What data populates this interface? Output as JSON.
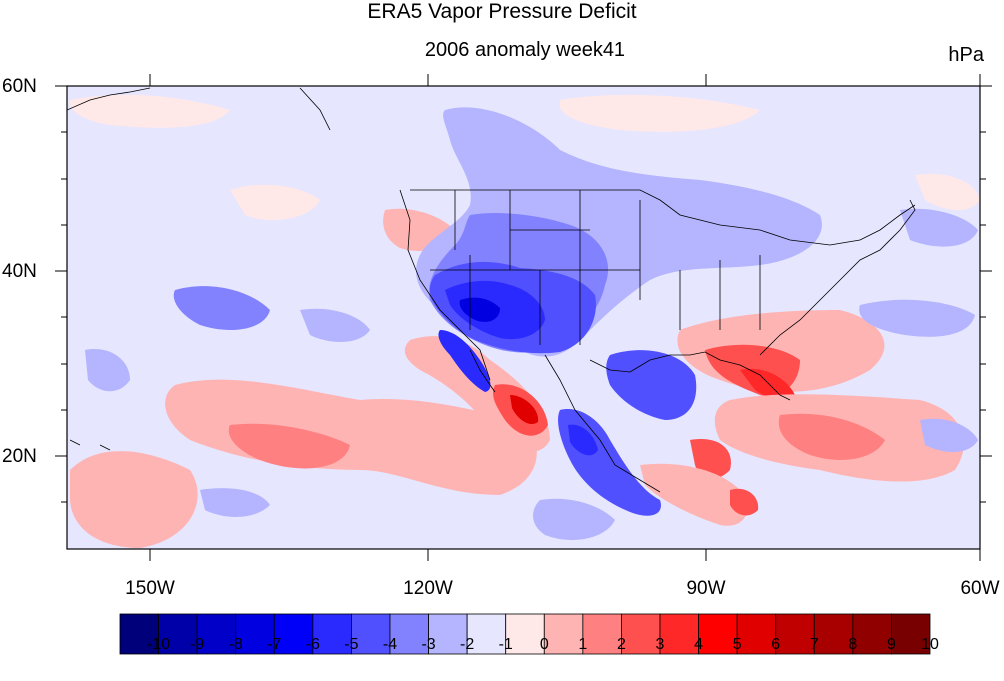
{
  "title": "ERA5 Vapor Pressure Deficit",
  "subtitle": "2006 anomaly week41",
  "units": "hPa",
  "map": {
    "projection": "cylindrical equidistant",
    "lon_range": [
      -160,
      -60
    ],
    "lat_range": [
      10,
      60
    ],
    "lat_labels": [
      {
        "value": 60,
        "text": "60N"
      },
      {
        "value": 40,
        "text": "40N"
      },
      {
        "value": 20,
        "text": "20N"
      }
    ],
    "lon_labels": [
      {
        "value": -150,
        "text": "150W"
      },
      {
        "value": -120,
        "text": "120W"
      },
      {
        "value": -90,
        "text": "90W"
      },
      {
        "value": -60,
        "text": "60W"
      }
    ]
  },
  "colorbar": {
    "colors": [
      "#00007a",
      "#0000a8",
      "#0000c8",
      "#0000e0",
      "#0000f8",
      "#2a2aff",
      "#5050ff",
      "#8282ff",
      "#b4b4ff",
      "#e6e6ff",
      "#ffe8e8",
      "#ffb4b4",
      "#ff8080",
      "#ff5050",
      "#ff2828",
      "#ff0000",
      "#e00000",
      "#c00000",
      "#a80000",
      "#900000",
      "#780000"
    ],
    "tick_labels": [
      "-10",
      "-9",
      "-8",
      "-7",
      "-6",
      "-5",
      "-4",
      "-3",
      "-2",
      "-1",
      "0",
      "1",
      "2",
      "3",
      "4",
      "5",
      "6",
      "7",
      "8",
      "9",
      "10"
    ]
  }
}
